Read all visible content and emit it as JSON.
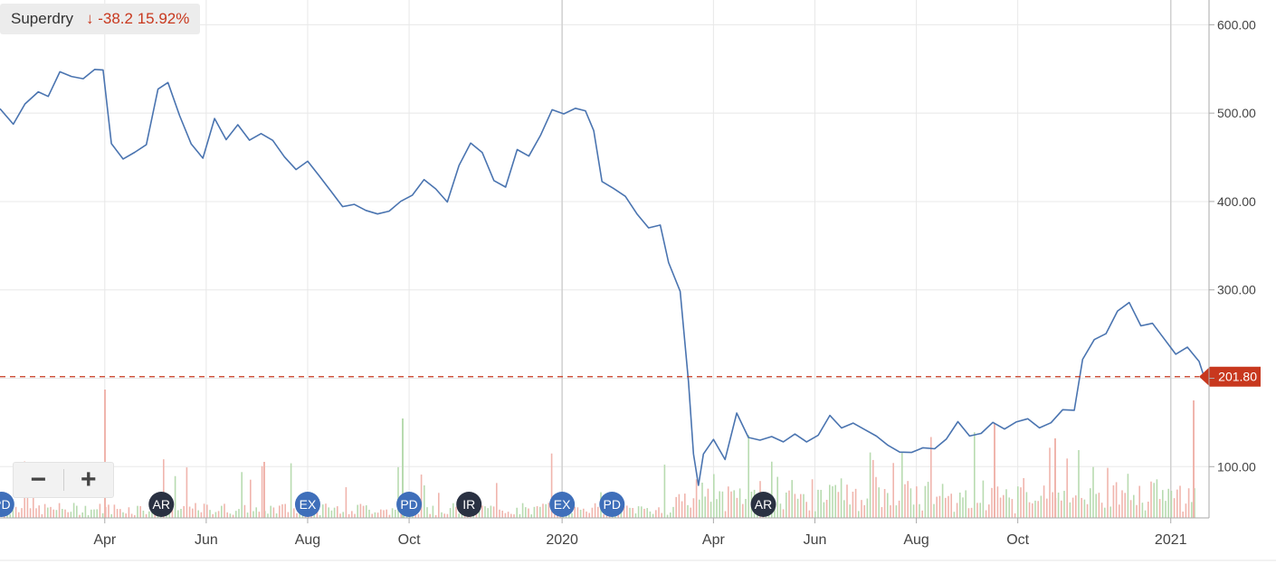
{
  "legend": {
    "name": "Superdry",
    "change_arrow": "↓",
    "change_value": "-38.2",
    "change_pct": "15.92%"
  },
  "zoom": {
    "minus": "−",
    "plus": "+"
  },
  "colors": {
    "line": "#4a74b0",
    "last_price": "#c8381e",
    "vol_up": "#b8dbb0",
    "vol_down": "#f0b5ad",
    "grid": "#e8e8e8",
    "badge_blue": "#3f6fba",
    "badge_dark": "#2a3142"
  },
  "chart_data": {
    "type": "line",
    "title": "",
    "xlabel": "",
    "ylabel": "",
    "ylim": [
      42,
      628
    ],
    "yticks": [
      100,
      200,
      300,
      400,
      500,
      600
    ],
    "ytick_labels": [
      "100.00",
      "",
      "300.00",
      "400.00",
      "500.00",
      "600.00"
    ],
    "x_range": [
      "2019-01-28",
      "2021-01-24"
    ],
    "xticks": [
      {
        "date": "2019-04-01",
        "label": "Apr"
      },
      {
        "date": "2019-06-01",
        "label": "Jun"
      },
      {
        "date": "2019-08-01",
        "label": "Aug"
      },
      {
        "date": "2019-10-01",
        "label": "Oct"
      },
      {
        "date": "2020-01-01",
        "label": "2020"
      },
      {
        "date": "2020-04-01",
        "label": "Apr"
      },
      {
        "date": "2020-06-01",
        "label": "Jun"
      },
      {
        "date": "2020-08-01",
        "label": "Aug"
      },
      {
        "date": "2020-10-01",
        "label": "Oct"
      },
      {
        "date": "2021-01-01",
        "label": "2021"
      }
    ],
    "series": [
      {
        "points": [
          [
            "2019-01-28",
            505
          ],
          [
            "2019-02-05",
            490
          ],
          [
            "2019-02-12",
            515
          ],
          [
            "2019-02-20",
            530
          ],
          [
            "2019-02-26",
            525
          ],
          [
            "2019-03-05",
            552
          ],
          [
            "2019-03-12",
            545
          ],
          [
            "2019-03-19",
            540
          ],
          [
            "2019-03-26",
            548
          ],
          [
            "2019-03-31",
            545
          ],
          [
            "2019-04-05",
            460
          ],
          [
            "2019-04-12",
            442
          ],
          [
            "2019-04-19",
            450
          ],
          [
            "2019-04-26",
            460
          ],
          [
            "2019-05-03",
            525
          ],
          [
            "2019-05-09",
            535
          ],
          [
            "2019-05-16",
            500
          ],
          [
            "2019-05-23",
            470
          ],
          [
            "2019-05-30",
            455
          ],
          [
            "2019-06-06",
            500
          ],
          [
            "2019-06-13",
            475
          ],
          [
            "2019-06-20",
            490
          ],
          [
            "2019-06-27",
            470
          ],
          [
            "2019-07-04",
            475
          ],
          [
            "2019-07-11",
            465
          ],
          [
            "2019-07-18",
            445
          ],
          [
            "2019-07-25",
            430
          ],
          [
            "2019-08-01",
            440
          ],
          [
            "2019-08-08",
            425
          ],
          [
            "2019-08-15",
            410
          ],
          [
            "2019-08-22",
            395
          ],
          [
            "2019-08-29",
            400
          ],
          [
            "2019-09-05",
            395
          ],
          [
            "2019-09-12",
            392
          ],
          [
            "2019-09-19",
            395
          ],
          [
            "2019-09-26",
            405
          ],
          [
            "2019-10-03",
            410
          ],
          [
            "2019-10-10",
            425
          ],
          [
            "2019-10-17",
            412
          ],
          [
            "2019-10-24",
            395
          ],
          [
            "2019-10-31",
            435
          ],
          [
            "2019-11-07",
            460
          ],
          [
            "2019-11-14",
            450
          ],
          [
            "2019-11-21",
            420
          ],
          [
            "2019-11-28",
            415
          ],
          [
            "2019-12-05",
            460
          ],
          [
            "2019-12-12",
            455
          ],
          [
            "2019-12-19",
            480
          ],
          [
            "2019-12-26",
            510
          ],
          [
            "2020-01-02",
            505
          ],
          [
            "2020-01-09",
            510
          ],
          [
            "2020-01-15",
            505
          ],
          [
            "2020-01-20",
            480
          ],
          [
            "2020-01-25",
            420
          ],
          [
            "2020-02-01",
            410
          ],
          [
            "2020-02-08",
            400
          ],
          [
            "2020-02-15",
            380
          ],
          [
            "2020-02-22",
            365
          ],
          [
            "2020-02-29",
            370
          ],
          [
            "2020-03-05",
            330
          ],
          [
            "2020-03-12",
            300
          ],
          [
            "2020-03-17",
            200
          ],
          [
            "2020-03-20",
            120
          ],
          [
            "2020-03-23",
            85
          ],
          [
            "2020-03-26",
            120
          ],
          [
            "2020-04-01",
            135
          ],
          [
            "2020-04-08",
            110
          ],
          [
            "2020-04-15",
            160
          ],
          [
            "2020-04-22",
            130
          ],
          [
            "2020-04-29",
            125
          ],
          [
            "2020-05-06",
            128
          ],
          [
            "2020-05-13",
            122
          ],
          [
            "2020-05-20",
            132
          ],
          [
            "2020-05-27",
            125
          ],
          [
            "2020-06-03",
            135
          ],
          [
            "2020-06-10",
            160
          ],
          [
            "2020-06-17",
            148
          ],
          [
            "2020-06-24",
            155
          ],
          [
            "2020-07-01",
            148
          ],
          [
            "2020-07-08",
            140
          ],
          [
            "2020-07-15",
            128
          ],
          [
            "2020-07-22",
            118
          ],
          [
            "2020-07-29",
            115
          ],
          [
            "2020-08-05",
            118
          ],
          [
            "2020-08-12",
            115
          ],
          [
            "2020-08-19",
            125
          ],
          [
            "2020-08-26",
            145
          ],
          [
            "2020-09-02",
            130
          ],
          [
            "2020-09-09",
            135
          ],
          [
            "2020-09-16",
            150
          ],
          [
            "2020-09-23",
            145
          ],
          [
            "2020-09-30",
            155
          ],
          [
            "2020-10-07",
            160
          ],
          [
            "2020-10-14",
            150
          ],
          [
            "2020-10-21",
            155
          ],
          [
            "2020-10-28",
            168
          ],
          [
            "2020-11-04",
            165
          ],
          [
            "2020-11-09",
            220
          ],
          [
            "2020-11-16",
            240
          ],
          [
            "2020-11-23",
            245
          ],
          [
            "2020-11-30",
            270
          ],
          [
            "2020-12-07",
            280
          ],
          [
            "2020-12-14",
            255
          ],
          [
            "2020-12-21",
            260
          ],
          [
            "2020-12-28",
            245
          ],
          [
            "2021-01-04",
            230
          ],
          [
            "2021-01-11",
            240
          ],
          [
            "2021-01-18",
            225
          ],
          [
            "2021-01-21",
            201.8
          ]
        ]
      }
    ],
    "last_price": 201.8,
    "last_price_label": "201.80",
    "events": [
      {
        "date": "2019-01-29",
        "label": "PD"
      },
      {
        "date": "2019-05-05",
        "label": "AR"
      },
      {
        "date": "2019-08-01",
        "label": "EX"
      },
      {
        "date": "2019-10-01",
        "label": "PD"
      },
      {
        "date": "2019-11-06",
        "label": "IR"
      },
      {
        "date": "2020-01-01",
        "label": "EX"
      },
      {
        "date": "2020-01-31",
        "label": "PD"
      },
      {
        "date": "2020-05-01",
        "label": "AR"
      }
    ]
  }
}
